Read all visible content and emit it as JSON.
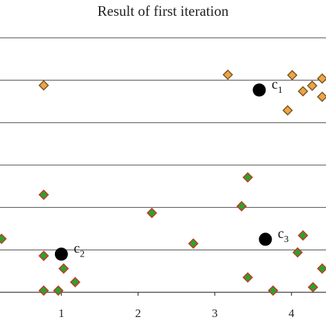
{
  "chart_data": {
    "type": "scatter",
    "title": "Result of first iteration",
    "xlabel": "",
    "ylabel": "",
    "xlim": [
      0.2,
      4.45
    ],
    "ylim": [
      0,
      6
    ],
    "grid": "horizontal",
    "ticks": {
      "x": [
        1,
        2,
        3,
        4
      ]
    },
    "series": [
      {
        "color": "#f0a24a",
        "edge": "#7a5a1e",
        "marker": "diamond",
        "points": [
          {
            "x": 0.77,
            "y": 4.88
          },
          {
            "x": 3.17,
            "y": 5.13
          },
          {
            "x": 4.01,
            "y": 5.12
          },
          {
            "x": 4.4,
            "y": 5.04
          },
          {
            "x": 4.27,
            "y": 4.87
          },
          {
            "x": 4.15,
            "y": 4.74
          },
          {
            "x": 4.4,
            "y": 4.61
          },
          {
            "x": 3.95,
            "y": 4.29
          }
        ]
      },
      {
        "color": "#2aa32a",
        "edge": "#c0392b",
        "marker": "diamond",
        "points": [
          {
            "x": 0.77,
            "y": 2.3
          },
          {
            "x": 2.18,
            "y": 1.87
          },
          {
            "x": 0.22,
            "y": 1.26
          },
          {
            "x": 2.72,
            "y": 1.15
          },
          {
            "x": 0.77,
            "y": 0.86
          },
          {
            "x": 1.03,
            "y": 0.56
          },
          {
            "x": 1.18,
            "y": 0.24
          },
          {
            "x": 0.77,
            "y": 0.04
          },
          {
            "x": 0.96,
            "y": 0.04
          },
          {
            "x": 3.43,
            "y": 2.71
          },
          {
            "x": 3.35,
            "y": 2.03
          },
          {
            "x": 4.15,
            "y": 1.34
          },
          {
            "x": 4.08,
            "y": 0.94
          },
          {
            "x": 4.4,
            "y": 0.56
          },
          {
            "x": 3.43,
            "y": 0.35
          },
          {
            "x": 4.28,
            "y": 0.12
          },
          {
            "x": 3.76,
            "y": 0.04
          }
        ]
      }
    ],
    "centroids": [
      {
        "label": "c",
        "sub": "1",
        "x": 3.58,
        "y": 4.77
      },
      {
        "label": "c",
        "sub": "2",
        "x": 1.0,
        "y": 0.9
      },
      {
        "label": "c",
        "sub": "3",
        "x": 3.66,
        "y": 1.25
      }
    ]
  }
}
